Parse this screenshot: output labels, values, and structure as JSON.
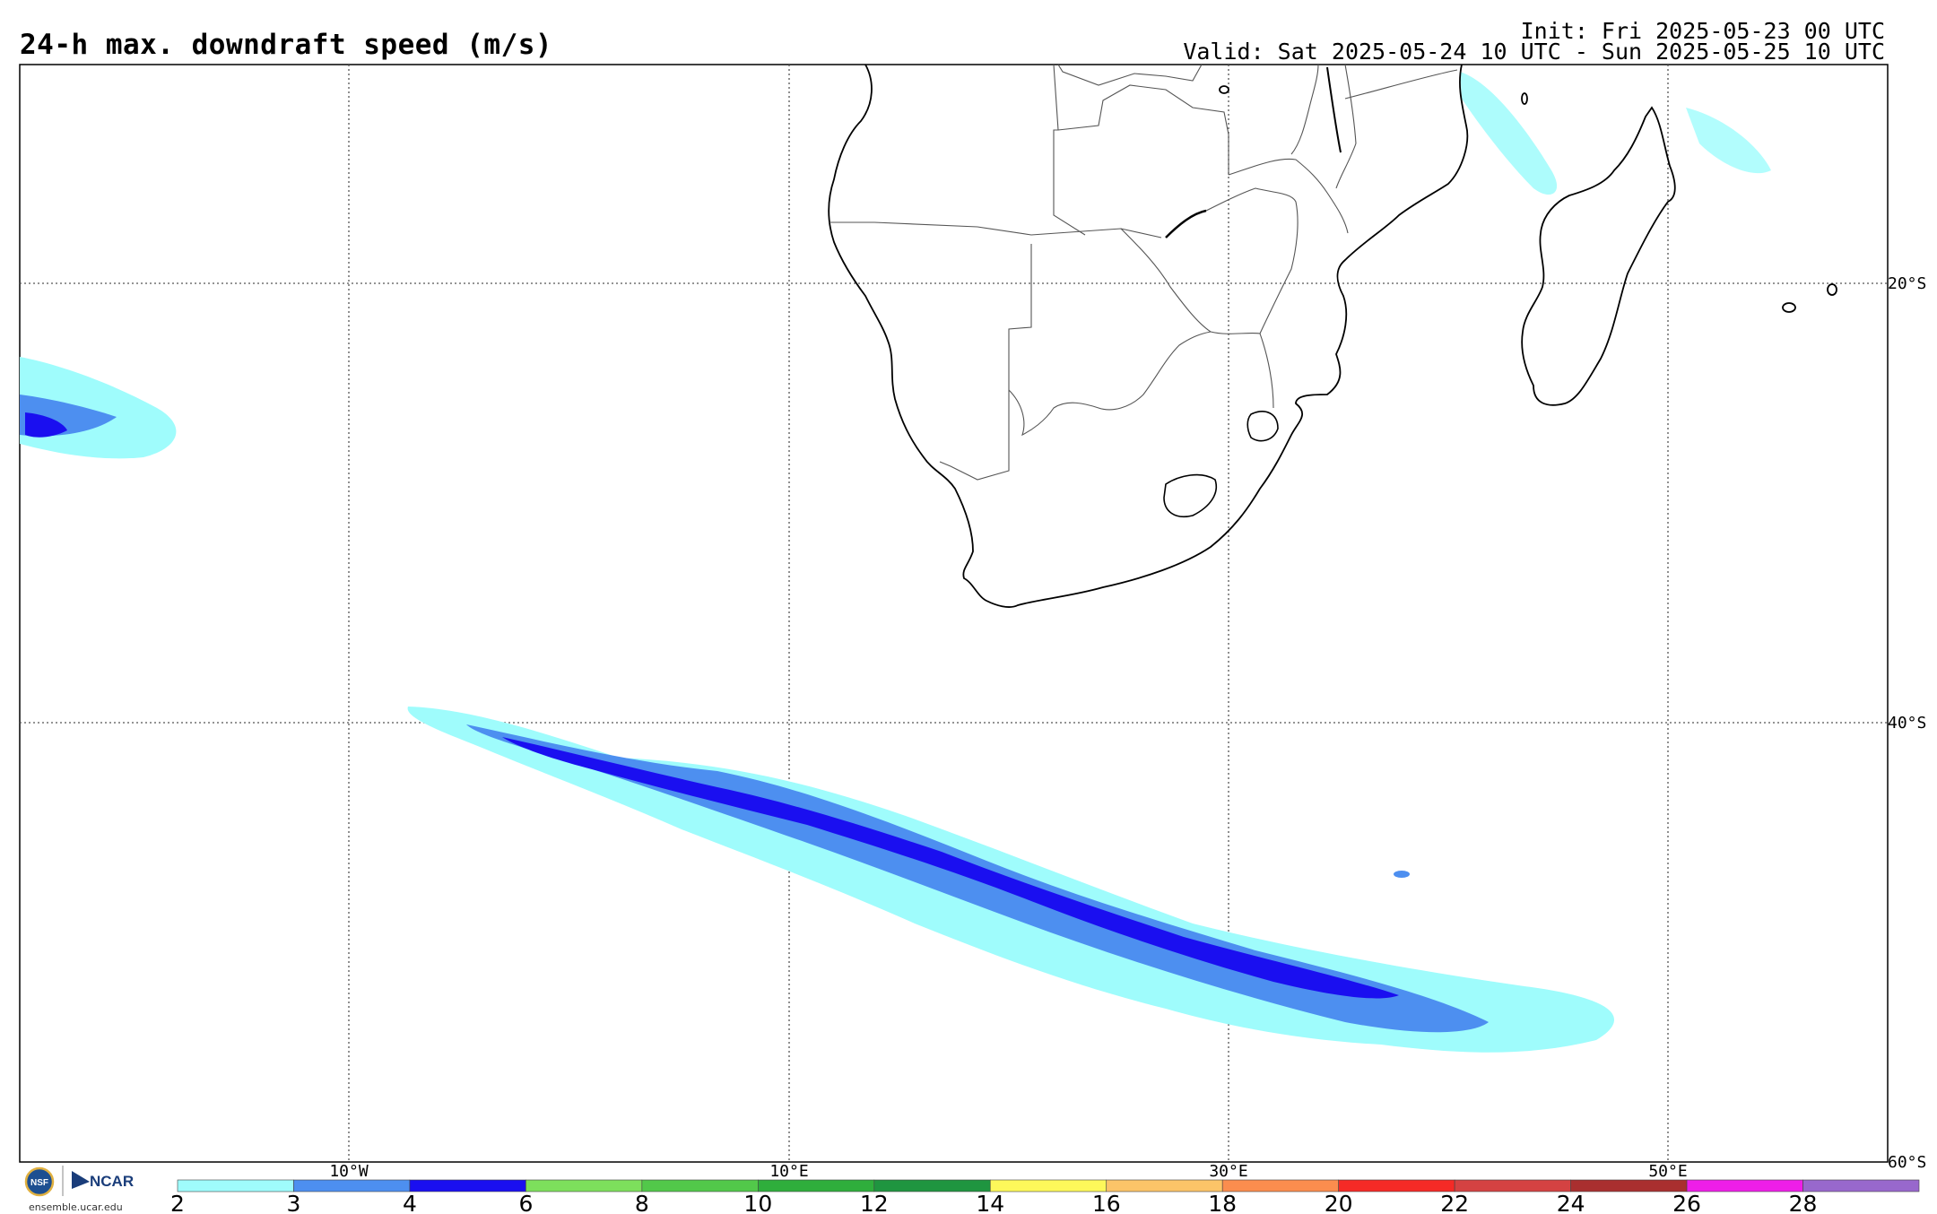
{
  "header": {
    "title": "24-h max. downdraft speed (m/s)",
    "init": "Init: Fri 2025-05-23 00 UTC",
    "valid": "Valid: Sat 2025-05-24 10 UTC - Sun 2025-05-25 10 UTC"
  },
  "axes": {
    "lon_labels": [
      "10°W",
      "10°E",
      "30°E",
      "50°E"
    ],
    "lat_labels": [
      "20°S",
      "40°S",
      "60°S"
    ]
  },
  "colorbar": {
    "ticks": [
      "2",
      "3",
      "4",
      "6",
      "8",
      "10",
      "12",
      "14",
      "16",
      "18",
      "20",
      "22",
      "24",
      "26",
      "28"
    ],
    "colors": [
      "#9ffcfc",
      "#4d8ff0",
      "#1a0ff0",
      "#7ddf5c",
      "#52c84a",
      "#2fae3c",
      "#1f9540",
      "#fdf85a",
      "#fcc468",
      "#fb8d4e",
      "#f52a26",
      "#d44242",
      "#a92f2f",
      "#ee1ee8",
      "#9868cc"
    ]
  },
  "logos": {
    "nsf": "NSF",
    "ncar": "NCAR",
    "credit": "ensemble.ucar.edu"
  }
}
